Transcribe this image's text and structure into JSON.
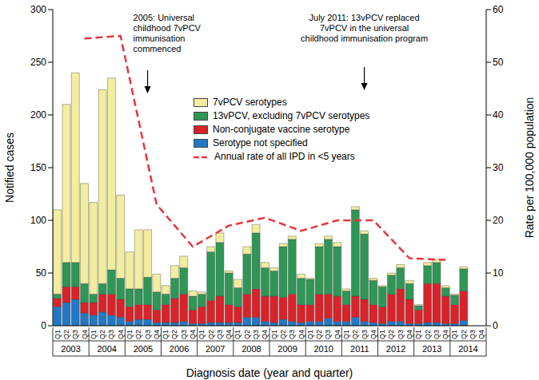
{
  "chart_data": {
    "type": "bar",
    "stacked": true,
    "x_label": "Diagnosis date (year and quarter)",
    "y_label": "Notified cases",
    "y2_label": "Rate per 100,000 population",
    "categories": [
      "Q1",
      "Q2",
      "Q3",
      "Q4",
      "Q1",
      "Q2",
      "Q3",
      "Q4",
      "Q1",
      "Q2",
      "Q3",
      "Q4",
      "Q1",
      "Q2",
      "Q3",
      "Q4",
      "Q1",
      "Q2",
      "Q3",
      "Q4",
      "Q1",
      "Q2",
      "Q3",
      "Q4",
      "Q1",
      "Q2",
      "Q3",
      "Q4",
      "Q1",
      "Q2",
      "Q3",
      "Q4",
      "Q1",
      "Q2",
      "Q3",
      "Q4",
      "Q1",
      "Q2",
      "Q3",
      "Q4",
      "Q1",
      "Q2",
      "Q3",
      "Q4",
      "Q1",
      "Q2",
      "Q3",
      "Q4"
    ],
    "year_labels": [
      "2003",
      "2004",
      "2005",
      "2006",
      "2007",
      "2008",
      "2009",
      "2010",
      "2011",
      "2012",
      "2013",
      "2014"
    ],
    "ylim": [
      0,
      300
    ],
    "yticks": [
      0,
      50,
      100,
      150,
      200,
      250,
      300
    ],
    "y2lim": [
      0,
      60
    ],
    "y2ticks": [
      0,
      10,
      20,
      30,
      40,
      50,
      60
    ],
    "legend": "top",
    "series": [
      {
        "name": "7vPCV serotypes",
        "color": "#f3eda0",
        "values": [
          80,
          150,
          180,
          95,
          87,
          184,
          182,
          79,
          35,
          56,
          45,
          17,
          8,
          12,
          11,
          5,
          2,
          5,
          9,
          2,
          8,
          7,
          8,
          5,
          3,
          3,
          3,
          4,
          1,
          3,
          3,
          4,
          2,
          3,
          3,
          2,
          1,
          2,
          3,
          3,
          1,
          3,
          3,
          2,
          1,
          2,
          null,
          null
        ]
      },
      {
        "name": "13vPCV, excluding 7vPCV serotypes",
        "color": "#2f9656",
        "values": [
          4,
          23,
          23,
          18,
          8,
          10,
          23,
          20,
          17,
          15,
          26,
          17,
          10,
          19,
          25,
          13,
          12,
          46,
          51,
          30,
          18,
          38,
          53,
          27,
          24,
          48,
          52,
          25,
          24,
          45,
          52,
          47,
          13,
          82,
          62,
          23,
          19,
          18,
          20,
          15,
          4,
          17,
          20,
          8,
          9,
          21,
          null,
          null
        ]
      },
      {
        "name": "Non-conjugate vaccine serotype",
        "color": "#d8232a",
        "values": [
          8,
          15,
          12,
          10,
          12,
          17,
          20,
          17,
          14,
          14,
          14,
          12,
          17,
          23,
          26,
          13,
          16,
          21,
          25,
          17,
          15,
          22,
          27,
          24,
          25,
          21,
          26,
          17,
          16,
          26,
          23,
          24,
          16,
          20,
          21,
          17,
          16,
          26,
          31,
          23,
          13,
          37,
          37,
          26,
          18,
          28,
          null,
          null
        ]
      },
      {
        "name": "Serotype not specified",
        "color": "#2378c3",
        "values": [
          18,
          22,
          25,
          12,
          10,
          13,
          10,
          8,
          4,
          6,
          6,
          3,
          3,
          3,
          4,
          2,
          2,
          3,
          3,
          3,
          3,
          8,
          8,
          4,
          3,
          6,
          4,
          3,
          4,
          4,
          7,
          4,
          4,
          8,
          4,
          3,
          2,
          4,
          4,
          2,
          2,
          3,
          3,
          2,
          2,
          5,
          null,
          null
        ]
      },
      {
        "name": "Annual rate of all IPD in <5 years",
        "type": "line",
        "axis": "y2",
        "line_style": "dashed",
        "color": "#e5363b",
        "values": [
          null,
          null,
          null,
          54.5,
          null,
          null,
          null,
          55,
          null,
          null,
          null,
          23,
          null,
          null,
          null,
          15,
          null,
          null,
          null,
          19,
          null,
          null,
          null,
          20.5,
          null,
          null,
          null,
          18,
          null,
          null,
          null,
          20,
          null,
          null,
          null,
          20,
          null,
          null,
          null,
          12.8,
          null,
          null,
          null,
          12.5,
          null,
          null,
          null,
          null
        ]
      }
    ],
    "annotations": [
      {
        "text": "2005: Universal childhood 7vPCV immunisation commenced"
      },
      {
        "text": "July 2011: 13vPCV replaced 7vPCV in the universal childhood immunisation program"
      }
    ]
  }
}
